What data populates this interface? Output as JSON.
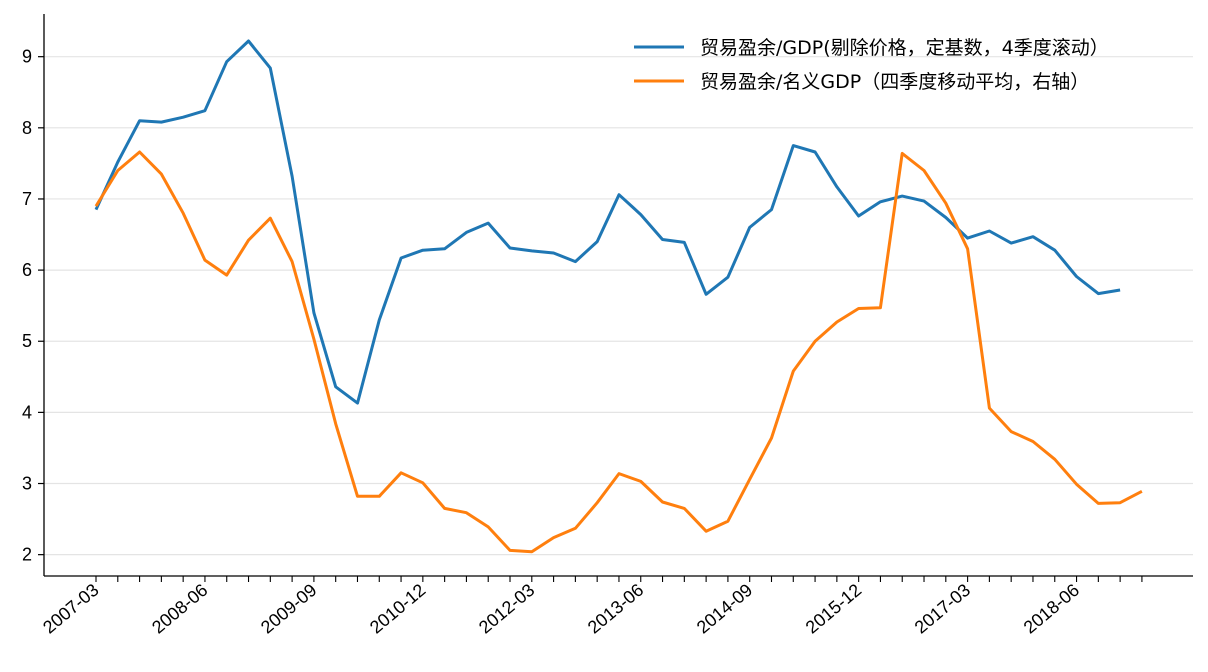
{
  "chart_data": {
    "type": "line",
    "title": "",
    "xlabel": "",
    "ylabel": "",
    "ylim": [
      1.7,
      9.6
    ],
    "yticks": [
      2,
      3,
      4,
      5,
      6,
      7,
      8,
      9
    ],
    "grid": "horizontal",
    "legend_position": "top-right",
    "x": [
      "2007-03",
      "2007-06",
      "2007-09",
      "2007-12",
      "2008-03",
      "2008-06",
      "2008-09",
      "2008-12",
      "2009-03",
      "2009-06",
      "2009-09",
      "2009-12",
      "2010-03",
      "2010-06",
      "2010-09",
      "2010-12",
      "2011-03",
      "2011-06",
      "2011-09",
      "2011-12",
      "2012-03",
      "2012-06",
      "2012-09",
      "2012-12",
      "2013-03",
      "2013-06",
      "2013-09",
      "2013-12",
      "2014-03",
      "2014-06",
      "2014-09",
      "2014-12",
      "2015-03",
      "2015-06",
      "2015-09",
      "2015-12",
      "2016-03",
      "2016-06",
      "2016-09",
      "2016-12",
      "2017-03",
      "2017-06",
      "2017-09",
      "2017-12",
      "2018-03",
      "2018-06",
      "2018-09",
      "2018-12",
      "2019-03"
    ],
    "xtick_labels": [
      "2007-03",
      "2008-06",
      "2009-09",
      "2010-12",
      "2012-03",
      "2013-06",
      "2014-09",
      "2015-12",
      "2017-03",
      "2018-06"
    ],
    "series": [
      {
        "name": "贸易盈余/GDP(剔除价格，定基数，4季度滚动）",
        "color": "#1f77b4",
        "values": [
          6.85,
          7.52,
          8.1,
          8.08,
          8.15,
          8.24,
          8.93,
          9.22,
          8.84,
          7.32,
          5.4,
          4.36,
          4.13,
          5.3,
          6.17,
          6.28,
          6.3,
          6.53,
          6.66,
          6.31,
          6.27,
          6.24,
          6.12,
          6.4,
          7.06,
          6.78,
          6.43,
          6.39,
          5.66,
          5.9,
          6.6,
          6.85,
          7.75,
          7.66,
          7.17,
          6.76,
          6.96,
          7.04,
          6.97,
          6.74,
          6.45,
          6.55,
          6.38,
          6.47,
          6.28,
          5.91,
          5.67,
          5.72,
          null
        ]
      },
      {
        "name": "贸易盈余/名义GDP（四季度移动平均，右轴）",
        "color": "#ff7f0e",
        "values": [
          6.9,
          7.4,
          7.66,
          7.35,
          6.8,
          6.14,
          5.93,
          6.42,
          6.73,
          6.12,
          5.03,
          3.84,
          2.82,
          2.82,
          3.15,
          3.01,
          2.65,
          2.59,
          2.39,
          2.06,
          2.04,
          2.24,
          2.37,
          2.73,
          3.14,
          3.03,
          2.74,
          2.65,
          2.33,
          2.47,
          3.06,
          3.64,
          4.58,
          5.0,
          5.27,
          5.46,
          5.47,
          7.64,
          7.4,
          6.94,
          6.3,
          4.06,
          3.73,
          3.59,
          3.34,
          2.99,
          2.72,
          2.73,
          2.89
        ]
      }
    ]
  }
}
